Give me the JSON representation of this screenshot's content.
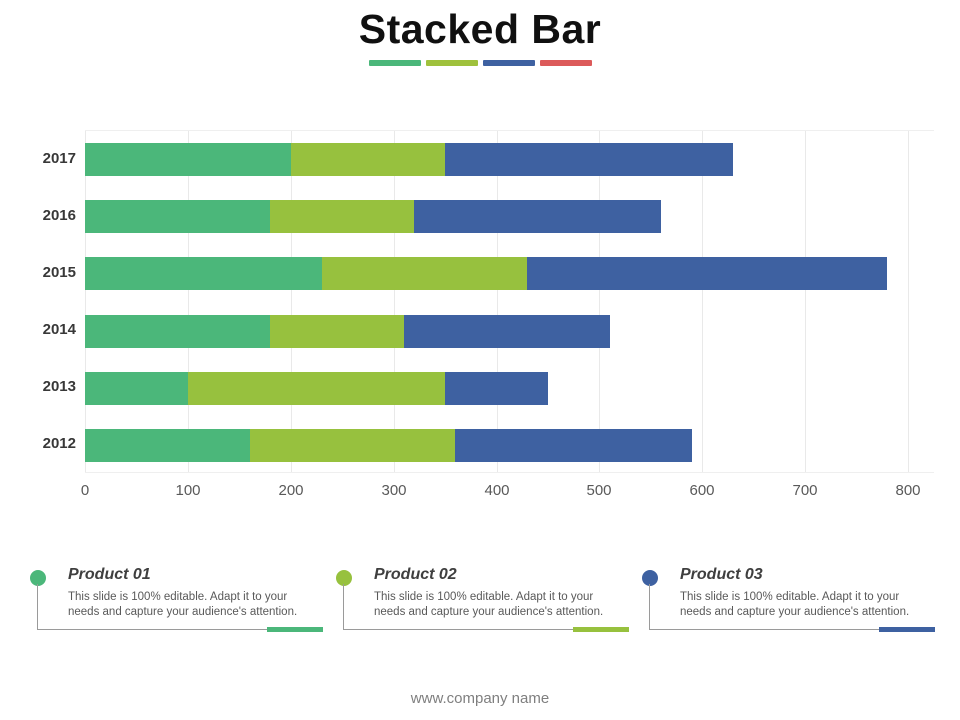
{
  "title": "Stacked Bar",
  "title_underline_colors": [
    "#4BB77A",
    "#9FC13C",
    "#3E61A1",
    "#DC5A5A"
  ],
  "chart_data": {
    "type": "bar",
    "orientation": "horizontal",
    "stacked": true,
    "title": "",
    "xlabel": "",
    "ylabel": "",
    "categories": [
      "2017",
      "2016",
      "2015",
      "2014",
      "2013",
      "2012"
    ],
    "series": [
      {
        "name": "Product 01",
        "color": "#4BB77A",
        "values": [
          200,
          180,
          230,
          180,
          100,
          160
        ]
      },
      {
        "name": "Product 02",
        "color": "#97C13E",
        "values": [
          150,
          140,
          200,
          130,
          250,
          200
        ]
      },
      {
        "name": "Product 03",
        "color": "#3E61A1",
        "values": [
          280,
          240,
          350,
          200,
          100,
          230
        ]
      }
    ],
    "totals": [
      630,
      560,
      780,
      510,
      450,
      590
    ],
    "xlim": [
      0,
      800
    ],
    "xticks": [
      0,
      100,
      200,
      300,
      400,
      500,
      600,
      700,
      800
    ],
    "grid": true,
    "legend_position": "bottom"
  },
  "legend": {
    "items": [
      {
        "label": "Product 01",
        "color": "#4BB77A",
        "description": "This slide is 100% editable. Adapt it to your needs and capture your audience's attention."
      },
      {
        "label": "Product 02",
        "color": "#97C13E",
        "description": "This slide is 100% editable. Adapt it to your needs and capture your audience's attention."
      },
      {
        "label": "Product 03",
        "color": "#3E61A1",
        "description": "This slide is 100% editable. Adapt it to your needs and capture your audience's attention."
      }
    ]
  },
  "footer": "www.company name"
}
